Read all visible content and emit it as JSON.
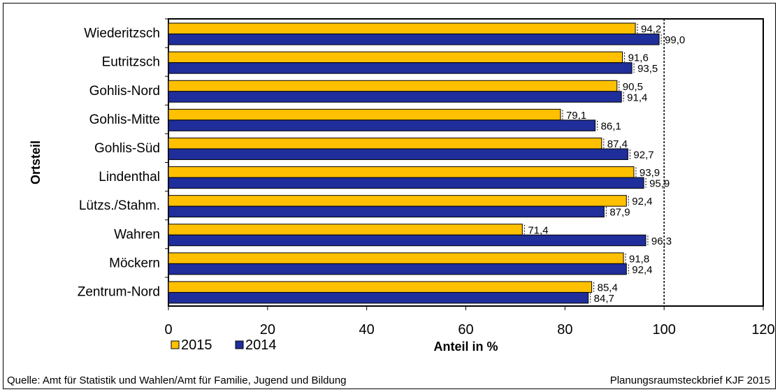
{
  "chart_data": {
    "type": "bar",
    "orientation": "horizontal",
    "categories": [
      "Wiederitzsch",
      "Eutritzsch",
      "Gohlis-Nord",
      "Gohlis-Mitte",
      "Gohlis-Süd",
      "Lindenthal",
      "Lützs./Stahm.",
      "Wahren",
      "Möckern",
      "Zentrum-Nord"
    ],
    "series": [
      {
        "name": "2015",
        "color": "#FFC000",
        "values": [
          94.2,
          91.6,
          90.5,
          79.1,
          87.4,
          93.9,
          92.4,
          71.4,
          91.8,
          85.4
        ],
        "labels": [
          "94,2",
          "91,6",
          "90,5",
          "79,1",
          "87,4",
          "93,9",
          "92,4",
          "71,4",
          "91,8",
          "85,4"
        ]
      },
      {
        "name": "2014",
        "color": "#1F2E9A",
        "values": [
          99.0,
          93.5,
          91.4,
          86.1,
          92.7,
          95.9,
          87.9,
          96.3,
          92.4,
          84.7
        ],
        "labels": [
          "99,0",
          "93,5",
          "91,4",
          "86,1",
          "92,7",
          "95,9",
          "87,9",
          "96,3",
          "92,4",
          "84,7"
        ]
      }
    ],
    "xlabel": "Anteil in %",
    "ylabel": "Ortsteil",
    "xlim": [
      0,
      120
    ],
    "xticks": [
      0,
      20,
      40,
      60,
      80,
      100,
      120
    ],
    "reference_line": 100,
    "legend_position": "bottom-left"
  },
  "footer": {
    "source": "Quelle: Amt für Statistik und Wahlen/Amt für Familie,  Jugend und Bildung",
    "publication": "Planungsraumsteckbrief KJF 2015"
  }
}
